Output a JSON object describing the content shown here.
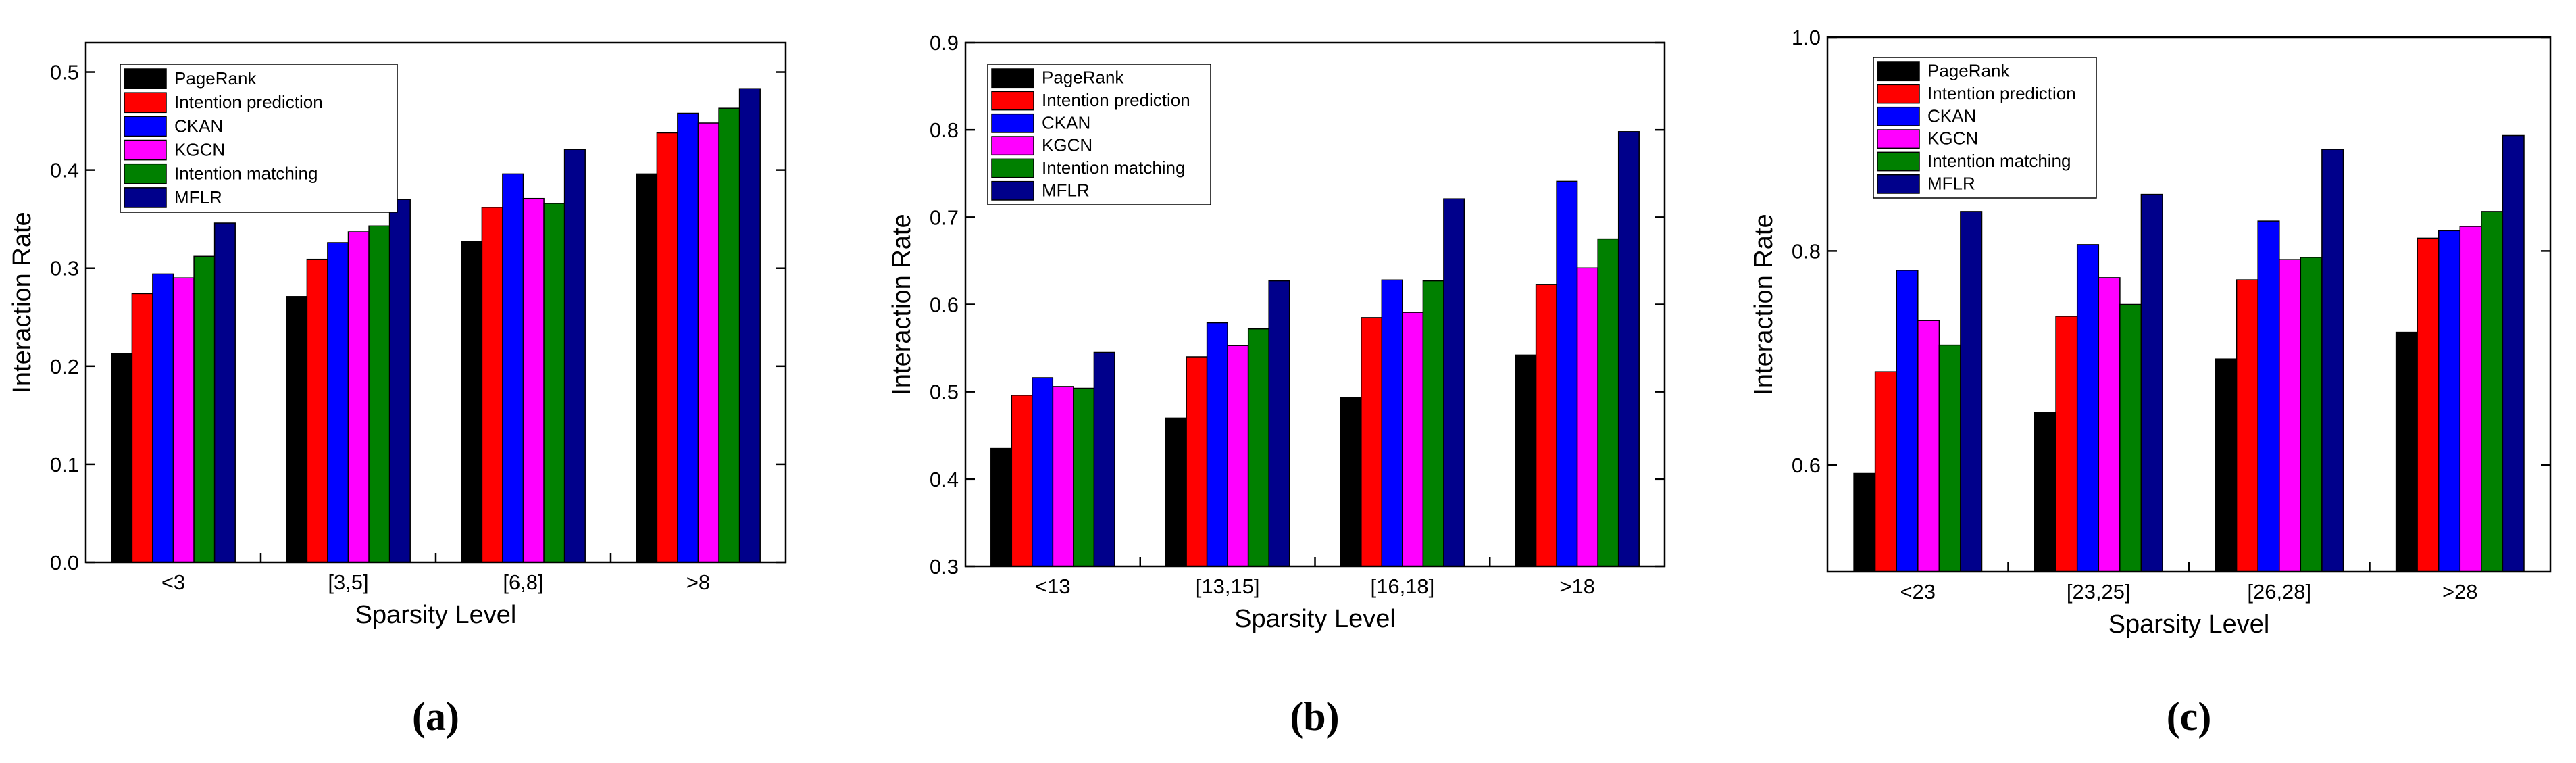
{
  "chart_data": [
    {
      "type": "bar",
      "panel_label": "(a)",
      "xlabel": "Sparsity Level",
      "ylabel": "Interaction Rate",
      "ylim": [
        0.0,
        0.53
      ],
      "yticks": [
        0.0,
        0.1,
        0.2,
        0.3,
        0.4,
        0.5
      ],
      "ytick_labels": [
        "0.0",
        "0.1",
        "0.2",
        "0.3",
        "0.4",
        "0.5"
      ],
      "categories": [
        "<3",
        "[3,5]",
        "[6,8]",
        ">8"
      ],
      "legend_position": "top-left",
      "series": [
        {
          "name": "PageRank",
          "color": "#000000",
          "values": [
            0.213,
            0.271,
            0.327,
            0.396
          ]
        },
        {
          "name": "Intention prediction",
          "color": "#ff0000",
          "values": [
            0.274,
            0.309,
            0.362,
            0.438
          ]
        },
        {
          "name": "CKAN",
          "color": "#0000ff",
          "values": [
            0.294,
            0.326,
            0.396,
            0.458
          ]
        },
        {
          "name": "KGCN",
          "color": "#ff00ff",
          "values": [
            0.29,
            0.337,
            0.371,
            0.448
          ]
        },
        {
          "name": "Intention matching",
          "color": "#008000",
          "values": [
            0.312,
            0.343,
            0.366,
            0.463
          ]
        },
        {
          "name": "MFLR",
          "color": "#00008b",
          "values": [
            0.346,
            0.37,
            0.421,
            0.483
          ]
        }
      ]
    },
    {
      "type": "bar",
      "panel_label": "(b)",
      "xlabel": "Sparsity Level",
      "ylabel": "Interaction Rate",
      "ylim": [
        0.3,
        0.9
      ],
      "yticks": [
        0.3,
        0.4,
        0.5,
        0.6,
        0.7,
        0.8,
        0.9
      ],
      "ytick_labels": [
        "0.3",
        "0.4",
        "0.5",
        "0.6",
        "0.7",
        "0.8",
        "0.9"
      ],
      "categories": [
        "<13",
        "[13,15]",
        "[16,18]",
        ">18"
      ],
      "legend_position": "top-left",
      "series": [
        {
          "name": "PageRank",
          "color": "#000000",
          "values": [
            0.435,
            0.47,
            0.493,
            0.542
          ]
        },
        {
          "name": "Intention prediction",
          "color": "#ff0000",
          "values": [
            0.496,
            0.54,
            0.585,
            0.623
          ]
        },
        {
          "name": "CKAN",
          "color": "#0000ff",
          "values": [
            0.516,
            0.579,
            0.628,
            0.741
          ]
        },
        {
          "name": "KGCN",
          "color": "#ff00ff",
          "values": [
            0.506,
            0.553,
            0.591,
            0.642
          ]
        },
        {
          "name": "Intention matching",
          "color": "#008000",
          "values": [
            0.504,
            0.572,
            0.627,
            0.675
          ]
        },
        {
          "name": "MFLR",
          "color": "#00008b",
          "values": [
            0.545,
            0.627,
            0.721,
            0.798
          ]
        }
      ]
    },
    {
      "type": "bar",
      "panel_label": "(c)",
      "xlabel": "Sparsity Level",
      "ylabel": "Interaction Rate",
      "ylim": [
        0.5,
        1.0
      ],
      "yticks": [
        0.6,
        0.8,
        1.0
      ],
      "ytick_labels": [
        "0.6",
        "0.8",
        "1.0"
      ],
      "categories": [
        "<23",
        "[23,25]",
        "[26,28]",
        ">28"
      ],
      "legend_position": "top-left",
      "series": [
        {
          "name": "PageRank",
          "color": "#000000",
          "values": [
            0.592,
            0.649,
            0.699,
            0.724
          ]
        },
        {
          "name": "Intention prediction",
          "color": "#ff0000",
          "values": [
            0.687,
            0.739,
            0.773,
            0.812
          ]
        },
        {
          "name": "CKAN",
          "color": "#0000ff",
          "values": [
            0.782,
            0.806,
            0.828,
            0.819
          ]
        },
        {
          "name": "KGCN",
          "color": "#ff00ff",
          "values": [
            0.735,
            0.775,
            0.792,
            0.823
          ]
        },
        {
          "name": "Intention matching",
          "color": "#008000",
          "values": [
            0.712,
            0.75,
            0.794,
            0.837
          ]
        },
        {
          "name": "MFLR",
          "color": "#00008b",
          "values": [
            0.837,
            0.853,
            0.895,
            0.908
          ]
        }
      ]
    }
  ]
}
